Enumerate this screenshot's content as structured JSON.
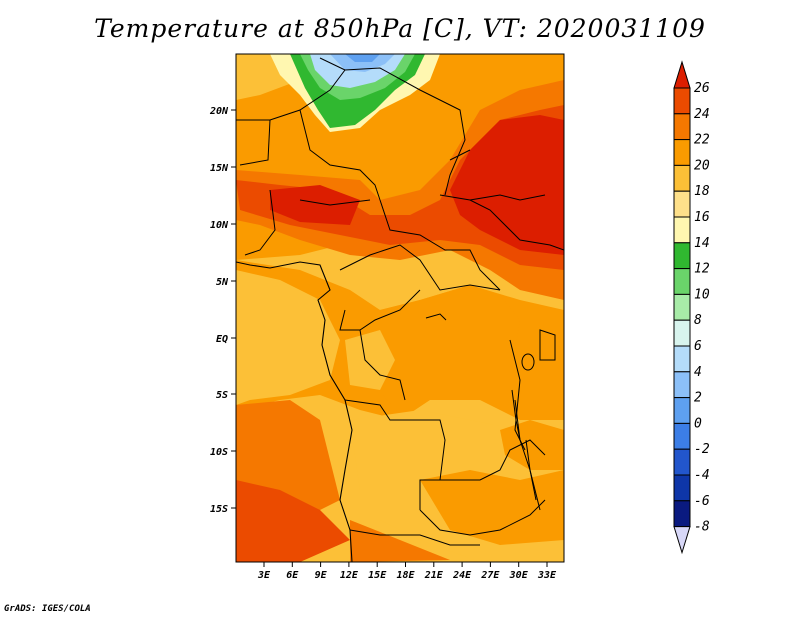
{
  "title": "Temperature at 850hPa [C], VT: 2020031109",
  "credit": "GrADS: IGES/COLA",
  "map": {
    "lon_range": [
      0,
      35
    ],
    "lat_range": [
      -20,
      24
    ],
    "lat_ticks": [
      "20N",
      "15N",
      "10N",
      "5N",
      "EQ",
      "5S",
      "10S",
      "15S"
    ],
    "lon_ticks": [
      "3E",
      "6E",
      "9E",
      "12E",
      "15E",
      "18E",
      "21E",
      "24E",
      "27E",
      "30E",
      "33E"
    ],
    "background_field": "orange shades 18-24C with a 24-26C band across the Sahel and Sudan and a 12-4C cool patch at the northern edge"
  },
  "colorbar": {
    "labels": [
      "26",
      "24",
      "22",
      "20",
      "18",
      "16",
      "14",
      "12",
      "10",
      "8",
      "6",
      "4",
      "2",
      "0",
      "-2",
      "-4",
      "-6",
      "-8"
    ],
    "colors": [
      "#dc1e00",
      "#eb4b00",
      "#f57800",
      "#fa9b00",
      "#fcc037",
      "#fee08a",
      "#fff7b0",
      "#30b830",
      "#6ad46a",
      "#a8eca8",
      "#d8f4ee",
      "#b4dcfa",
      "#8cc0f8",
      "#5ea0f0",
      "#3c7ee6",
      "#2256cc",
      "#0e36a8",
      "#0a1a80",
      "#0a0a50"
    ],
    "over_color": "#dc1e00",
    "under_color": "#d8d8f8"
  }
}
